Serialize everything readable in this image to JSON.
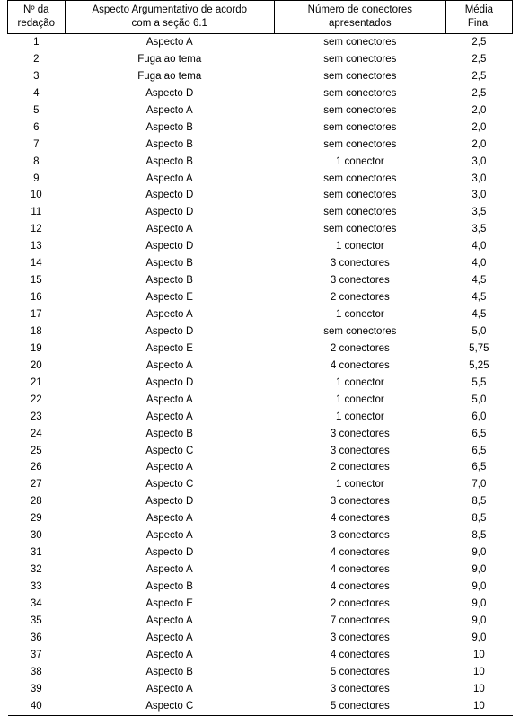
{
  "table": {
    "columns": [
      {
        "key": "num",
        "header": "Nº da\nredação"
      },
      {
        "key": "aspecto",
        "header": "Aspecto Argumentativo de acordo\ncom a seção 6.1"
      },
      {
        "key": "conectores",
        "header": "Número de conectores\napresentados"
      },
      {
        "key": "media",
        "header": "Média\nFinal"
      }
    ],
    "rows": [
      {
        "num": "1",
        "aspecto": "Aspecto A",
        "conectores": "sem conectores",
        "media": "2,5"
      },
      {
        "num": "2",
        "aspecto": "Fuga ao tema",
        "conectores": "sem conectores",
        "media": "2,5"
      },
      {
        "num": "3",
        "aspecto": "Fuga ao tema",
        "conectores": "sem conectores",
        "media": "2,5"
      },
      {
        "num": "4",
        "aspecto": "Aspecto D",
        "conectores": "sem conectores",
        "media": "2,5"
      },
      {
        "num": "5",
        "aspecto": "Aspecto A",
        "conectores": "sem conectores",
        "media": "2,0"
      },
      {
        "num": "6",
        "aspecto": "Aspecto B",
        "conectores": "sem conectores",
        "media": "2,0"
      },
      {
        "num": "7",
        "aspecto": "Aspecto B",
        "conectores": "sem conectores",
        "media": "2,0"
      },
      {
        "num": "8",
        "aspecto": "Aspecto B",
        "conectores": "1 conector",
        "media": "3,0"
      },
      {
        "num": "9",
        "aspecto": "Aspecto A",
        "conectores": "sem conectores",
        "media": "3,0"
      },
      {
        "num": "10",
        "aspecto": "Aspecto D",
        "conectores": "sem conectores",
        "media": "3,0"
      },
      {
        "num": "11",
        "aspecto": "Aspecto D",
        "conectores": "sem conectores",
        "media": "3,5"
      },
      {
        "num": "12",
        "aspecto": "Aspecto A",
        "conectores": "sem conectores",
        "media": "3,5"
      },
      {
        "num": "13",
        "aspecto": "Aspecto D",
        "conectores": "1 conector",
        "media": "4,0"
      },
      {
        "num": "14",
        "aspecto": "Aspecto B",
        "conectores": "3 conectores",
        "media": "4,0"
      },
      {
        "num": "15",
        "aspecto": "Aspecto B",
        "conectores": "3 conectores",
        "media": "4,5"
      },
      {
        "num": "16",
        "aspecto": "Aspecto E",
        "conectores": "2 conectores",
        "media": "4,5"
      },
      {
        "num": "17",
        "aspecto": "Aspecto A",
        "conectores": "1 conector",
        "media": "4,5"
      },
      {
        "num": "18",
        "aspecto": "Aspecto D",
        "conectores": "sem conectores",
        "media": "5,0"
      },
      {
        "num": "19",
        "aspecto": "Aspecto E",
        "conectores": "2 conectores",
        "media": "5,75"
      },
      {
        "num": "20",
        "aspecto": "Aspecto A",
        "conectores": "4 conectores",
        "media": "5,25"
      },
      {
        "num": "21",
        "aspecto": "Aspecto D",
        "conectores": "1 conector",
        "media": "5,5"
      },
      {
        "num": "22",
        "aspecto": "Aspecto A",
        "conectores": "1 conector",
        "media": "5,0"
      },
      {
        "num": "23",
        "aspecto": "Aspecto A",
        "conectores": "1 conector",
        "media": "6,0"
      },
      {
        "num": "24",
        "aspecto": "Aspecto B",
        "conectores": "3 conectores",
        "media": "6,5"
      },
      {
        "num": "25",
        "aspecto": "Aspecto C",
        "conectores": "3 conectores",
        "media": "6,5"
      },
      {
        "num": "26",
        "aspecto": "Aspecto A",
        "conectores": "2 conectores",
        "media": "6,5"
      },
      {
        "num": "27",
        "aspecto": "Aspecto C",
        "conectores": "1 conector",
        "media": "7,0"
      },
      {
        "num": "28",
        "aspecto": "Aspecto D",
        "conectores": "3 conectores",
        "media": "8,5"
      },
      {
        "num": "29",
        "aspecto": "Aspecto A",
        "conectores": "4 conectores",
        "media": "8,5"
      },
      {
        "num": "30",
        "aspecto": "Aspecto A",
        "conectores": "3 conectores",
        "media": "8,5"
      },
      {
        "num": "31",
        "aspecto": "Aspecto D",
        "conectores": "4 conectores",
        "media": "9,0"
      },
      {
        "num": "32",
        "aspecto": "Aspecto A",
        "conectores": "4 conectores",
        "media": "9,0"
      },
      {
        "num": "33",
        "aspecto": "Aspecto B",
        "conectores": "4 conectores",
        "media": "9,0"
      },
      {
        "num": "34",
        "aspecto": "Aspecto E",
        "conectores": "2 conectores",
        "media": "9,0"
      },
      {
        "num": "35",
        "aspecto": "Aspecto A",
        "conectores": "7 conectores",
        "media": "9,0"
      },
      {
        "num": "36",
        "aspecto": "Aspecto A",
        "conectores": "3 conectores",
        "media": "9,0"
      },
      {
        "num": "37",
        "aspecto": "Aspecto A",
        "conectores": "4 conectores",
        "media": "10"
      },
      {
        "num": "38",
        "aspecto": "Aspecto B",
        "conectores": "5 conectores",
        "media": "10"
      },
      {
        "num": "39",
        "aspecto": "Aspecto A",
        "conectores": "3 conectores",
        "media": "10"
      },
      {
        "num": "40",
        "aspecto": "Aspecto C",
        "conectores": "5 conectores",
        "media": "10"
      }
    ]
  }
}
